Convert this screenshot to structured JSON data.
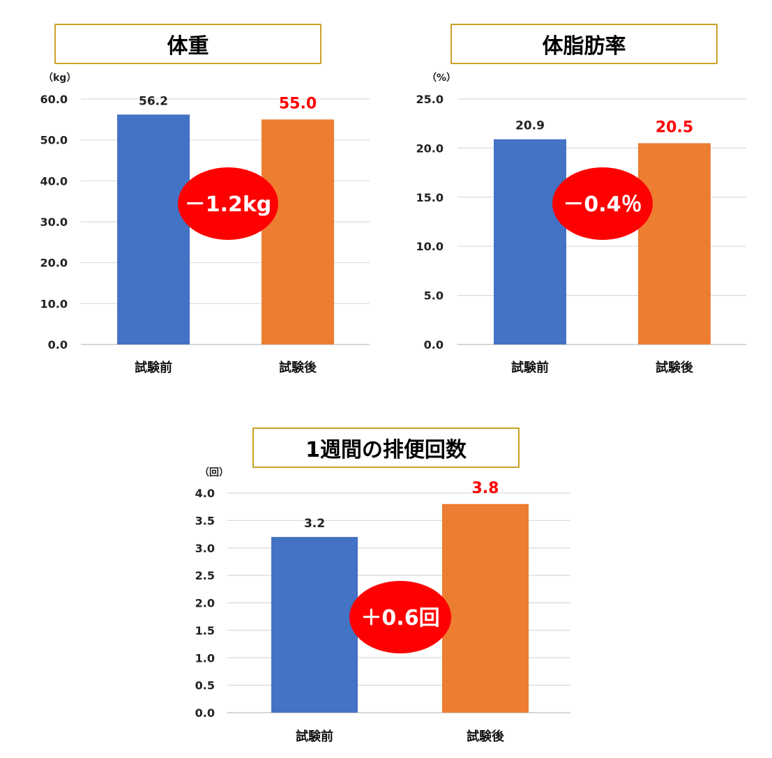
{
  "colors": {
    "before": "#4472c4",
    "after": "#ed7d31",
    "highlight": "#ff0000",
    "grid": "#d9d9d9",
    "title_border": "#c9a227"
  },
  "chart_data": [
    {
      "type": "bar",
      "title": "体重",
      "unit": "（kg）",
      "categories": [
        "試験前",
        "試験後"
      ],
      "values": [
        56.2,
        55.0
      ],
      "value_labels": [
        "56.2",
        "55.0"
      ],
      "ylim": [
        0,
        60
      ],
      "yticks": [
        "0.0",
        "10.0",
        "20.0",
        "30.0",
        "40.0",
        "50.0",
        "60.0"
      ],
      "grid": true,
      "difference": "－1.2kg"
    },
    {
      "type": "bar",
      "title": "体脂肪率",
      "unit": "（%）",
      "categories": [
        "試験前",
        "試験後"
      ],
      "values": [
        20.9,
        20.5
      ],
      "value_labels": [
        "20.9",
        "20.5"
      ],
      "ylim": [
        0,
        25
      ],
      "yticks": [
        "0.0",
        "5.0",
        "10.0",
        "15.0",
        "20.0",
        "25.0"
      ],
      "grid": true,
      "difference": "－0.4％"
    },
    {
      "type": "bar",
      "title": "1週間の排便回数",
      "unit": "（回）",
      "categories": [
        "試験前",
        "試験後"
      ],
      "values": [
        3.2,
        3.8
      ],
      "value_labels": [
        "3.2",
        "3.8"
      ],
      "ylim": [
        0,
        4
      ],
      "yticks": [
        "0.0",
        "0.5",
        "1.0",
        "1.5",
        "2.0",
        "2.5",
        "3.0",
        "3.5",
        "4.0"
      ],
      "grid": true,
      "difference": "＋0.6回"
    }
  ]
}
